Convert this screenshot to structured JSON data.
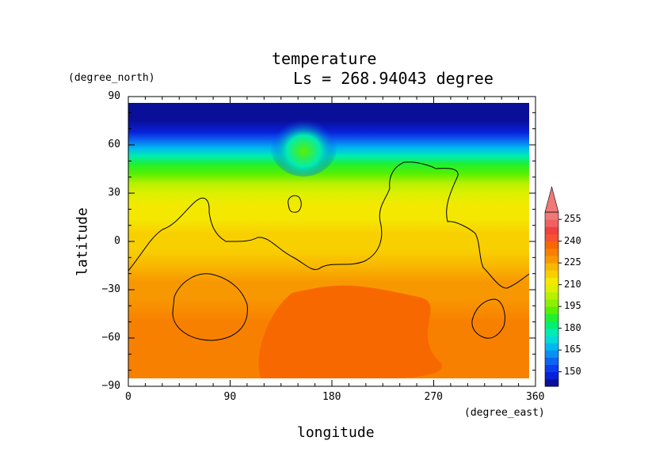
{
  "chart_data": {
    "type": "heatmap",
    "title": "temperature",
    "subtitle": "Ls = 268.94043 degree",
    "xlabel": "longitude",
    "ylabel": "latitude",
    "x_unit": "(degree_east)",
    "y_unit": "(degree_north)",
    "xlim": [
      0,
      360
    ],
    "ylim": [
      -90,
      90
    ],
    "x_ticks": [
      0,
      90,
      180,
      270,
      360
    ],
    "y_ticks": [
      90,
      60,
      30,
      0,
      -30,
      -60,
      -90
    ],
    "colorbar": {
      "levels": [
        140,
        145,
        150,
        155,
        160,
        165,
        170,
        175,
        180,
        185,
        190,
        195,
        200,
        205,
        210,
        215,
        220,
        225,
        230,
        235,
        240,
        245,
        250,
        255,
        260
      ],
      "labels": [
        150,
        165,
        180,
        195,
        210,
        225,
        240,
        255
      ],
      "colors": [
        "#0a0f9a",
        "#0820d8",
        "#0a3cf0",
        "#0c64f2",
        "#0a90f2",
        "#00b8f0",
        "#00dcd8",
        "#00ecb0",
        "#00f070",
        "#20f030",
        "#58f000",
        "#8cf000",
        "#b8f000",
        "#dcf000",
        "#f4e800",
        "#f8d000",
        "#f8b800",
        "#f89800",
        "#f88000",
        "#f86800",
        "#f85030",
        "#f04040",
        "#f06060",
        "#f07878"
      ],
      "extend": "max"
    },
    "lat_profile": [
      {
        "lat": 90,
        "value": 142
      },
      {
        "lat": 82,
        "value": 142
      },
      {
        "lat": 75,
        "value": 143
      },
      {
        "lat": 68,
        "value": 148
      },
      {
        "lat": 63,
        "value": 156
      },
      {
        "lat": 58,
        "value": 166
      },
      {
        "lat": 53,
        "value": 176
      },
      {
        "lat": 48,
        "value": 186
      },
      {
        "lat": 42,
        "value": 194
      },
      {
        "lat": 36,
        "value": 200
      },
      {
        "lat": 30,
        "value": 205
      },
      {
        "lat": 22,
        "value": 210
      },
      {
        "lat": 14,
        "value": 214
      },
      {
        "lat": 5,
        "value": 216
      },
      {
        "lat": -5,
        "value": 218
      },
      {
        "lat": -15,
        "value": 221
      },
      {
        "lat": -25,
        "value": 225
      },
      {
        "lat": -35,
        "value": 229
      },
      {
        "lat": -50,
        "value": 231
      },
      {
        "lat": -65,
        "value": 232
      },
      {
        "lat": -80,
        "value": 232
      },
      {
        "lat": -90,
        "value": 232
      }
    ],
    "warm_core": {
      "lon_range": [
        110,
        280
      ],
      "lat_range": [
        -85,
        -28
      ],
      "value": 237
    },
    "polar_cap_bulge": {
      "lon": 155,
      "width": 60,
      "value": 190
    }
  }
}
